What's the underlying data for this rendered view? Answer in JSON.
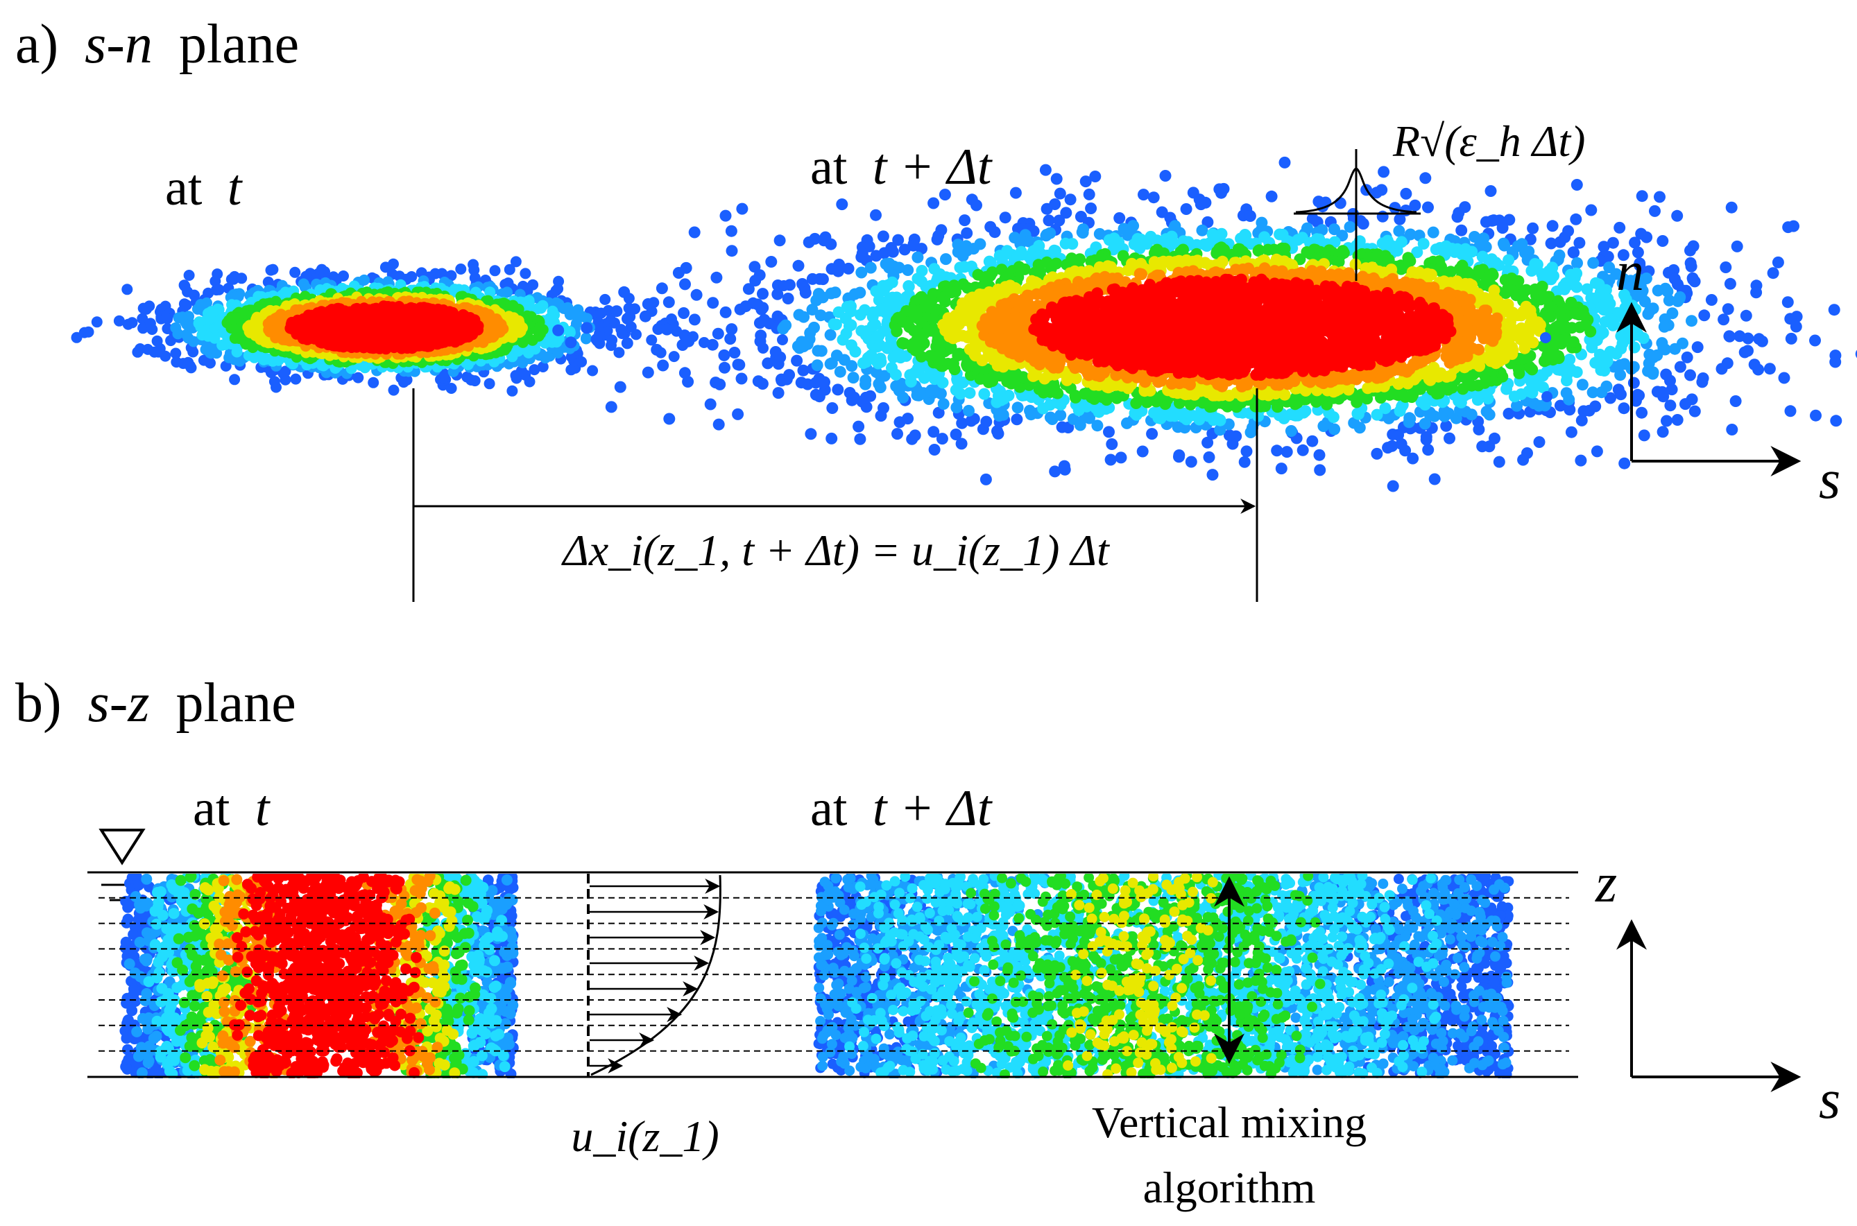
{
  "panel_a": {
    "letter": "a)",
    "axes_name": "s-n",
    "word": "plane",
    "label_t_prefix": "at",
    "label_t_var": "t",
    "label_tdt_prefix": "at",
    "label_tdt_expr": "t + Δt",
    "displacement_eq": "Δx_i(z_1, t + Δt) = u_i(z_1) Δt",
    "random_walk_label": "R√(ε_h Δt)",
    "axis_vertical": "n",
    "axis_horizontal": "s"
  },
  "panel_b": {
    "letter": "b)",
    "axes_name": "s-z",
    "word": "plane",
    "label_t_prefix": "at",
    "label_t_var": "t",
    "label_tdt_prefix": "at",
    "label_tdt_expr": "t + Δt",
    "water_surface_symbol": "∇",
    "velocity_label": "u_i(z_1)",
    "mixing_caption_line1": "Vertical mixing",
    "mixing_caption_line2": "algorithm",
    "axis_vertical": "z",
    "axis_horizontal": "s"
  },
  "colors": {
    "core": "#ff0000",
    "orange": "#ff8c00",
    "yellow": "#e8e800",
    "green": "#22dd22",
    "cyan": "#22ddff",
    "light_blue": "#1a9fff",
    "blue": "#1a5fff"
  }
}
